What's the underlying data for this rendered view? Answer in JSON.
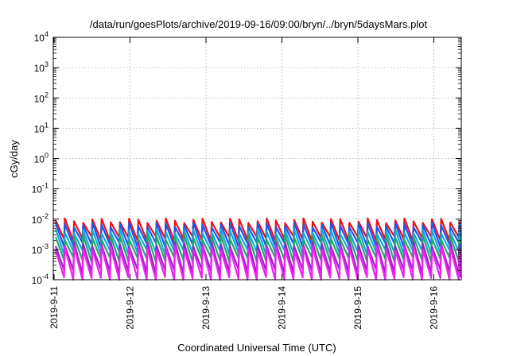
{
  "chart_data": {
    "type": "line",
    "title": "/data/run/goesPlots/archive/2019-09-16/09:00/bryn/../bryn/5daysMars.plot",
    "xlabel": "Coordinated Universal Time (UTC)",
    "ylabel": "cGy/day",
    "x_range": [
      "2019-09-11",
      "2019-09-16 09:00"
    ],
    "ylim": [
      0.0001,
      10000
    ],
    "yscale": "log",
    "grid": true,
    "legend": "none",
    "x_tick_labels": [
      "2019-9-11",
      "2019-9-12",
      "2019-9-13",
      "2019-9-14",
      "2019-9-15",
      "2019-9-16"
    ],
    "y_tick_labels": [
      {
        "base": "10",
        "exp": "-4"
      },
      {
        "base": "10",
        "exp": "-3"
      },
      {
        "base": "10",
        "exp": "-2"
      },
      {
        "base": "10",
        "exp": "-1"
      },
      {
        "base": "10",
        "exp": "0"
      },
      {
        "base": "10",
        "exp": "1"
      },
      {
        "base": "10",
        "exp": "2"
      },
      {
        "base": "10",
        "exp": "3"
      },
      {
        "base": "10",
        "exp": "4"
      }
    ],
    "sawtooth_period_hours": 2.9,
    "series": [
      {
        "color": "#ee1111",
        "peak": 0.009,
        "trough": 0.0022
      },
      {
        "color": "#2255ee",
        "peak": 0.0065,
        "trough": 0.0014
      },
      {
        "color": "#11aadd",
        "peak": 0.004,
        "trough": 0.0008
      },
      {
        "color": "#22aa66",
        "peak": 0.0025,
        "trough": 0.00045
      },
      {
        "color": "#9922cc",
        "peak": 0.0015,
        "trough": 0.00018
      },
      {
        "color": "#ee22ee",
        "peak": 0.0011,
        "trough": 0.0001
      }
    ]
  }
}
